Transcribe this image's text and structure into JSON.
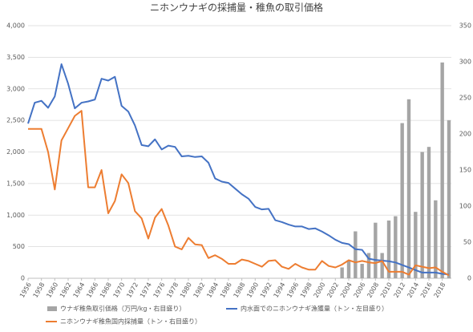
{
  "chart_data": {
    "type": "combo",
    "title": "ニホンウナギの採捕量・稚魚の取引価格",
    "x": [
      1956,
      1957,
      1958,
      1959,
      1960,
      1961,
      1962,
      1963,
      1964,
      1965,
      1966,
      1967,
      1968,
      1969,
      1970,
      1971,
      1972,
      1973,
      1974,
      1975,
      1976,
      1977,
      1978,
      1979,
      1980,
      1981,
      1982,
      1983,
      1984,
      1985,
      1986,
      1987,
      1988,
      1989,
      1990,
      1991,
      1992,
      1993,
      1994,
      1995,
      1996,
      1997,
      1998,
      1999,
      2000,
      2001,
      2002,
      2003,
      2004,
      2005,
      2006,
      2007,
      2008,
      2009,
      2010,
      2011,
      2012,
      2013,
      2014,
      2015,
      2016,
      2017,
      2018,
      2019
    ],
    "xlim": [
      1956,
      2019
    ],
    "xticks": [
      1956,
      1958,
      1960,
      1962,
      1964,
      1966,
      1968,
      1970,
      1972,
      1974,
      1976,
      1978,
      1980,
      1982,
      1984,
      1986,
      1988,
      1990,
      1992,
      1994,
      1996,
      1998,
      2000,
      2002,
      2004,
      2006,
      2008,
      2010,
      2012,
      2014,
      2016,
      2018
    ],
    "ylim": [
      0,
      4000
    ],
    "yticks": [
      0,
      500,
      {
        "value": 1000,
        "label": "1,000"
      },
      {
        "value": 1500,
        "label": "1,500"
      },
      {
        "value": 2000,
        "label": "2,000"
      },
      {
        "value": 2500,
        "label": "2,500"
      },
      {
        "value": 3000,
        "label": "3,000"
      },
      {
        "value": 3500,
        "label": "3,500"
      },
      {
        "value": 4000,
        "label": "4,000"
      }
    ],
    "y2lim": [
      0,
      350
    ],
    "y2ticks": [
      0,
      50,
      100,
      150,
      200,
      250,
      300,
      350
    ],
    "grid": true,
    "legend": "bottom",
    "series": [
      {
        "name": "ウナギ稚魚取引価格（万円/kg・右目盛り）",
        "type": "bar",
        "axis": "y2",
        "color": "#a5a5a5",
        "values": [
          null,
          null,
          null,
          null,
          null,
          null,
          null,
          null,
          null,
          null,
          null,
          null,
          null,
          null,
          null,
          null,
          null,
          null,
          null,
          null,
          null,
          null,
          null,
          null,
          null,
          null,
          null,
          null,
          null,
          null,
          null,
          null,
          null,
          null,
          null,
          null,
          null,
          null,
          null,
          null,
          null,
          null,
          null,
          null,
          null,
          null,
          null,
          15,
          25,
          65,
          20,
          35,
          77,
          35,
          80,
          86,
          215,
          248,
          92,
          175,
          182,
          108,
          299,
          219
        ]
      },
      {
        "name": "内水面でのニホンウナギ漁獲量（トン・左目盛り）",
        "type": "line",
        "axis": "y",
        "color": "#4472c4",
        "values": [
          2450,
          2780,
          2810,
          2700,
          2880,
          3390,
          3080,
          2690,
          2780,
          2800,
          2830,
          3160,
          3130,
          3190,
          2730,
          2640,
          2420,
          2110,
          2090,
          2200,
          2040,
          2100,
          2080,
          1930,
          1940,
          1920,
          1930,
          1830,
          1580,
          1530,
          1510,
          1420,
          1330,
          1260,
          1130,
          1090,
          1100,
          920,
          890,
          850,
          820,
          820,
          780,
          790,
          740,
          680,
          610,
          560,
          540,
          460,
          450,
          310,
          290,
          280,
          270,
          250,
          210,
          170,
          130,
          90,
          90,
          90,
          70,
          60
        ]
      },
      {
        "name": "ニホンウナギ稚魚国内採捕量（トン・右目盛り）",
        "type": "line",
        "axis": "y2",
        "color": "#ed7d31",
        "values": [
          207,
          207,
          207,
          175,
          123,
          191,
          208,
          225,
          232,
          126,
          126,
          150,
          90,
          107,
          144,
          132,
          93,
          83,
          55,
          84,
          96,
          73,
          44,
          40,
          56,
          47,
          46,
          28,
          32,
          27,
          20,
          20,
          26,
          24,
          20,
          16,
          24,
          25,
          16,
          13,
          20,
          15,
          12,
          12,
          24,
          17,
          15,
          19,
          25,
          22,
          24,
          22,
          21,
          24,
          9,
          9,
          9,
          5,
          18,
          16,
          14,
          15,
          9,
          4
        ]
      }
    ]
  }
}
